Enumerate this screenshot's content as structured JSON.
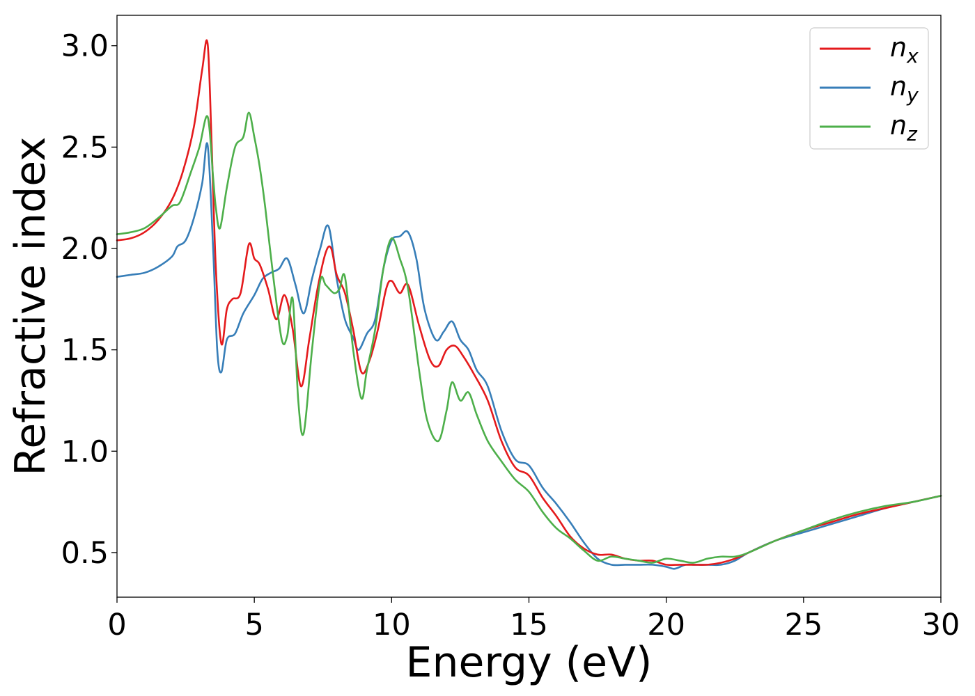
{
  "chart_data": {
    "type": "line",
    "title": "",
    "xlabel": "Energy (eV)",
    "ylabel": "Refractive index",
    "xlim": [
      0,
      30
    ],
    "ylim": [
      0.28,
      3.15
    ],
    "xticks": [
      0,
      5,
      10,
      15,
      20,
      25,
      30
    ],
    "xtick_labels": [
      "0",
      "5",
      "10",
      "15",
      "20",
      "25",
      "30"
    ],
    "yticks": [
      0.5,
      1.0,
      1.5,
      2.0,
      2.5,
      3.0
    ],
    "ytick_labels": [
      "0.5",
      "1.0",
      "1.5",
      "2.0",
      "2.5",
      "3.0"
    ],
    "grid": false,
    "legend_position": "top-right",
    "series": [
      {
        "name": "n_x",
        "legend_base": "n",
        "legend_sub": "x",
        "color": "#e41a1c",
        "x": [
          0,
          0.5,
          1.0,
          1.5,
          2.0,
          2.4,
          2.8,
          3.1,
          3.3,
          3.45,
          3.6,
          3.8,
          4.0,
          4.2,
          4.5,
          4.8,
          5.0,
          5.2,
          5.5,
          5.8,
          6.1,
          6.4,
          6.7,
          7.0,
          7.3,
          7.6,
          7.8,
          8.0,
          8.3,
          8.6,
          8.9,
          9.2,
          9.5,
          9.8,
          10.0,
          10.3,
          10.6,
          11.0,
          11.4,
          11.7,
          12.0,
          12.3,
          12.6,
          13.0,
          13.5,
          14.0,
          14.5,
          15.0,
          15.5,
          16.0,
          16.5,
          17.0,
          17.5,
          18.0,
          18.5,
          19.0,
          19.5,
          20.0,
          20.5,
          21.0,
          21.5,
          22.0,
          22.5,
          23.0,
          24.0,
          25.0,
          26.0,
          27.0,
          28.0,
          29.0,
          30.0
        ],
        "y": [
          2.04,
          2.05,
          2.08,
          2.14,
          2.24,
          2.38,
          2.6,
          2.88,
          3.01,
          2.5,
          1.9,
          1.53,
          1.7,
          1.75,
          1.78,
          2.02,
          1.95,
          1.92,
          1.8,
          1.65,
          1.77,
          1.6,
          1.32,
          1.55,
          1.8,
          1.98,
          2.0,
          1.87,
          1.78,
          1.6,
          1.39,
          1.45,
          1.6,
          1.8,
          1.84,
          1.78,
          1.82,
          1.62,
          1.45,
          1.42,
          1.5,
          1.52,
          1.47,
          1.38,
          1.25,
          1.05,
          0.92,
          0.88,
          0.77,
          0.68,
          0.58,
          0.52,
          0.49,
          0.49,
          0.47,
          0.46,
          0.46,
          0.44,
          0.44,
          0.44,
          0.44,
          0.45,
          0.47,
          0.5,
          0.56,
          0.61,
          0.65,
          0.69,
          0.72,
          0.75,
          0.78
        ]
      },
      {
        "name": "n_y",
        "legend_base": "n",
        "legend_sub": "y",
        "color": "#377eb8",
        "x": [
          0,
          0.5,
          1.0,
          1.5,
          2.0,
          2.2,
          2.5,
          2.8,
          3.1,
          3.3,
          3.5,
          3.65,
          3.8,
          4.0,
          4.3,
          4.6,
          5.0,
          5.3,
          5.6,
          5.9,
          6.2,
          6.5,
          6.8,
          7.1,
          7.4,
          7.7,
          8.0,
          8.3,
          8.6,
          8.8,
          9.1,
          9.4,
          9.7,
          10.0,
          10.3,
          10.6,
          10.9,
          11.2,
          11.6,
          11.9,
          12.2,
          12.5,
          12.8,
          13.1,
          13.5,
          14.0,
          14.5,
          15.0,
          15.5,
          16.0,
          16.5,
          17.0,
          17.5,
          18.0,
          18.5,
          19.0,
          19.5,
          20.0,
          20.3,
          20.7,
          21.0,
          21.5,
          22.0,
          22.5,
          23.0,
          24.0,
          25.0,
          26.0,
          27.0,
          28.0,
          29.0,
          30.0
        ],
        "y": [
          1.86,
          1.87,
          1.88,
          1.91,
          1.96,
          2.01,
          2.04,
          2.15,
          2.32,
          2.51,
          2.0,
          1.5,
          1.39,
          1.55,
          1.58,
          1.68,
          1.77,
          1.85,
          1.88,
          1.9,
          1.95,
          1.82,
          1.68,
          1.85,
          2.0,
          2.11,
          1.85,
          1.65,
          1.56,
          1.5,
          1.58,
          1.65,
          1.9,
          2.04,
          2.06,
          2.08,
          1.95,
          1.7,
          1.55,
          1.59,
          1.64,
          1.55,
          1.5,
          1.4,
          1.32,
          1.1,
          0.96,
          0.93,
          0.82,
          0.74,
          0.65,
          0.55,
          0.47,
          0.44,
          0.44,
          0.44,
          0.44,
          0.43,
          0.42,
          0.44,
          0.44,
          0.44,
          0.44,
          0.46,
          0.5,
          0.56,
          0.6,
          0.64,
          0.68,
          0.72,
          0.75,
          0.78
        ]
      },
      {
        "name": "n_z",
        "legend_base": "n",
        "legend_sub": "z",
        "color": "#4daf4a",
        "x": [
          0,
          0.5,
          1.0,
          1.5,
          2.0,
          2.3,
          2.7,
          3.0,
          3.3,
          3.5,
          3.6,
          3.75,
          4.0,
          4.3,
          4.6,
          4.8,
          5.0,
          5.2,
          5.4,
          5.7,
          6.0,
          6.2,
          6.4,
          6.6,
          6.8,
          7.1,
          7.4,
          7.6,
          7.9,
          8.1,
          8.3,
          8.6,
          8.9,
          9.1,
          9.4,
          9.7,
          10.0,
          10.3,
          10.6,
          11.0,
          11.3,
          11.7,
          12.0,
          12.2,
          12.5,
          12.8,
          13.1,
          13.5,
          14.0,
          14.5,
          15.0,
          15.5,
          16.0,
          16.5,
          17.0,
          17.5,
          18.0,
          18.5,
          19.0,
          19.5,
          20.0,
          20.5,
          21.0,
          21.5,
          22.0,
          22.5,
          23.0,
          24.0,
          25.0,
          26.0,
          27.0,
          28.0,
          29.0,
          30.0
        ],
        "y": [
          2.07,
          2.08,
          2.1,
          2.15,
          2.21,
          2.23,
          2.38,
          2.5,
          2.65,
          2.35,
          2.2,
          2.1,
          2.3,
          2.5,
          2.55,
          2.67,
          2.55,
          2.4,
          2.2,
          1.85,
          1.55,
          1.57,
          1.75,
          1.25,
          1.09,
          1.5,
          1.84,
          1.82,
          1.78,
          1.8,
          1.86,
          1.5,
          1.26,
          1.4,
          1.6,
          1.9,
          2.05,
          1.95,
          1.8,
          1.4,
          1.15,
          1.05,
          1.2,
          1.34,
          1.25,
          1.29,
          1.18,
          1.05,
          0.95,
          0.86,
          0.8,
          0.7,
          0.62,
          0.57,
          0.51,
          0.46,
          0.48,
          0.47,
          0.46,
          0.45,
          0.47,
          0.46,
          0.45,
          0.47,
          0.48,
          0.48,
          0.5,
          0.56,
          0.61,
          0.66,
          0.7,
          0.73,
          0.75,
          0.78
        ]
      }
    ]
  }
}
